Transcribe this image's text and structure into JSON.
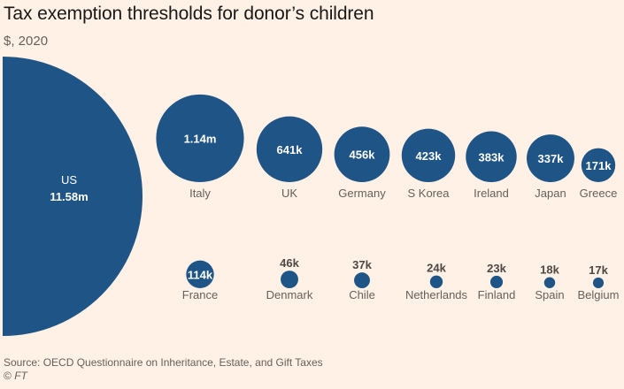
{
  "header": {
    "title": "Tax exemption thresholds for donor’s children",
    "subtitle": "$, 2020"
  },
  "footer": {
    "source": "Source: OECD Questionnaire on Inheritance, Estate, and Gift Taxes",
    "copyright_symbol": "©",
    "copyright_brand": "FT"
  },
  "colors": {
    "bubble": "#1f5486",
    "background": "#fff1e5",
    "label": "#66605c",
    "value_outside": "#4d4845",
    "value_inside": "#ffffff"
  },
  "chart_data": {
    "type": "bubble",
    "title": "Tax exemption thresholds for donor’s children",
    "subtitle": "$, 2020",
    "unit": "USD",
    "size_encoding": "circle area proportional to value",
    "source": "Source: OECD Questionnaire on Inheritance, Estate, and Gift Taxes",
    "rows": [
      {
        "row": "featured",
        "items": [
          {
            "country": "US",
            "value": 11580000,
            "label": "11.58m"
          }
        ]
      },
      {
        "row": "top",
        "items": [
          {
            "country": "Italy",
            "value": 1140000,
            "label": "1.14m"
          },
          {
            "country": "UK",
            "value": 641000,
            "label": "641k"
          },
          {
            "country": "Germany",
            "value": 456000,
            "label": "456k"
          },
          {
            "country": "S Korea",
            "value": 423000,
            "label": "423k"
          },
          {
            "country": "Ireland",
            "value": 383000,
            "label": "383k"
          },
          {
            "country": "Japan",
            "value": 337000,
            "label": "337k"
          },
          {
            "country": "Greece",
            "value": 171000,
            "label": "171k"
          }
        ]
      },
      {
        "row": "bottom",
        "items": [
          {
            "country": "France",
            "value": 114000,
            "label": "114k"
          },
          {
            "country": "Denmark",
            "value": 46000,
            "label": "46k"
          },
          {
            "country": "Chile",
            "value": 37000,
            "label": "37k"
          },
          {
            "country": "Netherlands",
            "value": 24000,
            "label": "24k"
          },
          {
            "country": "Finland",
            "value": 23000,
            "label": "23k"
          },
          {
            "country": "Spain",
            "value": 18000,
            "label": "18k"
          },
          {
            "country": "Belgium",
            "value": 17000,
            "label": "17k"
          }
        ]
      }
    ]
  }
}
